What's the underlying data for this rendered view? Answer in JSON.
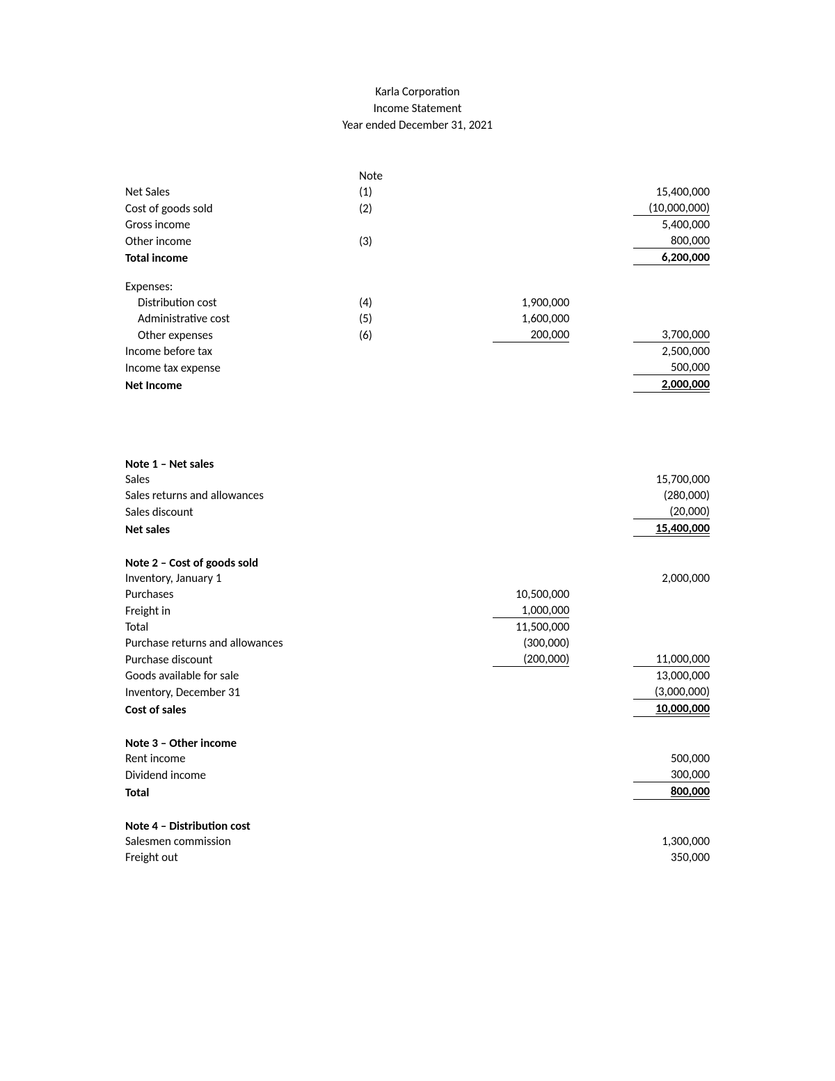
{
  "header": {
    "company": "Karla Corporation",
    "title": "Income Statement",
    "period": "Year ended December 31, 2021"
  },
  "note_header": "Note",
  "main": {
    "net_sales": {
      "label": "Net Sales",
      "note": "(1)",
      "value": "15,400,000"
    },
    "cogs": {
      "label": "Cost of goods sold",
      "note": "(2)",
      "value": "(10,000,000)"
    },
    "gross_income": {
      "label": "Gross income",
      "value": "5,400,000"
    },
    "other_income": {
      "label": "Other income",
      "note": "(3)",
      "value": "800,000"
    },
    "total_income": {
      "label": "Total income",
      "value": "6,200,000"
    },
    "expenses_label": "Expenses:",
    "dist_cost": {
      "label": "Distribution cost",
      "note": "(4)",
      "mid": "1,900,000"
    },
    "admin_cost": {
      "label": "Administrative cost",
      "note": "(5)",
      "mid": "1,600,000"
    },
    "other_exp": {
      "label": "Other expenses",
      "note": "(6)",
      "mid": "200,000",
      "right": "3,700,000"
    },
    "income_before_tax": {
      "label": "Income before tax",
      "value": "2,500,000"
    },
    "tax_expense": {
      "label": "Income tax expense",
      "value": "500,000"
    },
    "net_income": {
      "label": "Net Income",
      "value": "2,000,000"
    }
  },
  "note1": {
    "title": "Note 1 – Net sales",
    "sales": {
      "label": "Sales",
      "value": "15,700,000"
    },
    "returns": {
      "label": "Sales returns and allowances",
      "value": "(280,000)"
    },
    "discount": {
      "label": "Sales discount",
      "value": "(20,000)"
    },
    "net_sales": {
      "label": "Net sales",
      "value": "15,400,000"
    }
  },
  "note2": {
    "title": "Note 2 – Cost of goods sold",
    "inv_jan1": {
      "label": "Inventory, January 1",
      "right": "2,000,000"
    },
    "purchases": {
      "label": "Purchases",
      "mid": "10,500,000"
    },
    "freight_in": {
      "label": "Freight in",
      "mid": "1,000,000"
    },
    "total_mid": {
      "label": "Total",
      "mid": "11,500,000"
    },
    "purch_returns": {
      "label": "Purchase returns and allowances",
      "mid": "(300,000)"
    },
    "purch_discount": {
      "label": "Purchase discount",
      "mid": "(200,000)",
      "right": "11,000,000"
    },
    "goods_avail": {
      "label": "Goods available for sale",
      "right": "13,000,000"
    },
    "inv_dec31": {
      "label": "Inventory, December 31",
      "right": "(3,000,000)"
    },
    "cost_of_sales": {
      "label": "Cost of sales",
      "right": "10,000,000"
    }
  },
  "note3": {
    "title": "Note 3 – Other income",
    "rent": {
      "label": "Rent income",
      "value": "500,000"
    },
    "dividend": {
      "label": "Dividend income",
      "value": "300,000"
    },
    "total": {
      "label": "Total",
      "value": "800,000"
    }
  },
  "note4": {
    "title": "Note 4 – Distribution cost",
    "commission": {
      "label": "Salesmen commission",
      "value": "1,300,000"
    },
    "freight_out": {
      "label": "Freight out",
      "value": "350,000"
    }
  }
}
